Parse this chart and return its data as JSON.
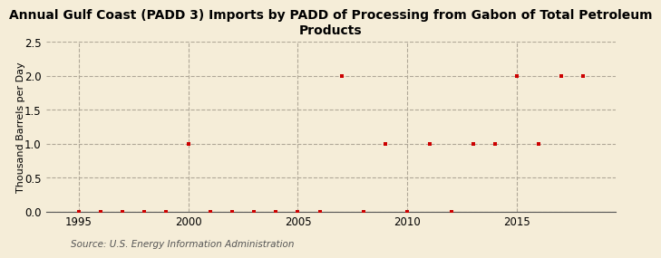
{
  "title": "Annual Gulf Coast (PADD 3) Imports by PADD of Processing from Gabon of Total Petroleum\nProducts",
  "ylabel": "Thousand Barrels per Day",
  "source": "Source: U.S. Energy Information Administration",
  "background_color": "#f5edd8",
  "plot_bg_color": "#f5edd8",
  "xlim": [
    1993.5,
    2019.5
  ],
  "ylim": [
    0.0,
    2.5
  ],
  "yticks": [
    0.0,
    0.5,
    1.0,
    1.5,
    2.0,
    2.5
  ],
  "xticks": [
    1995,
    2000,
    2005,
    2010,
    2015
  ],
  "grid_color": "#b0a898",
  "marker_color": "#cc0000",
  "years": [
    1995,
    1996,
    1997,
    1998,
    1999,
    2000,
    2001,
    2002,
    2003,
    2004,
    2005,
    2006,
    2007,
    2008,
    2009,
    2010,
    2011,
    2012,
    2013,
    2014,
    2015,
    2016,
    2017,
    2018
  ],
  "values": [
    0,
    0,
    0,
    0,
    0,
    1,
    0,
    0,
    0,
    0,
    0,
    0,
    2,
    0,
    1,
    0,
    1,
    0,
    1,
    1,
    2,
    1,
    2,
    2
  ],
  "title_fontsize": 10,
  "ylabel_fontsize": 8,
  "tick_fontsize": 8.5,
  "source_fontsize": 7.5
}
